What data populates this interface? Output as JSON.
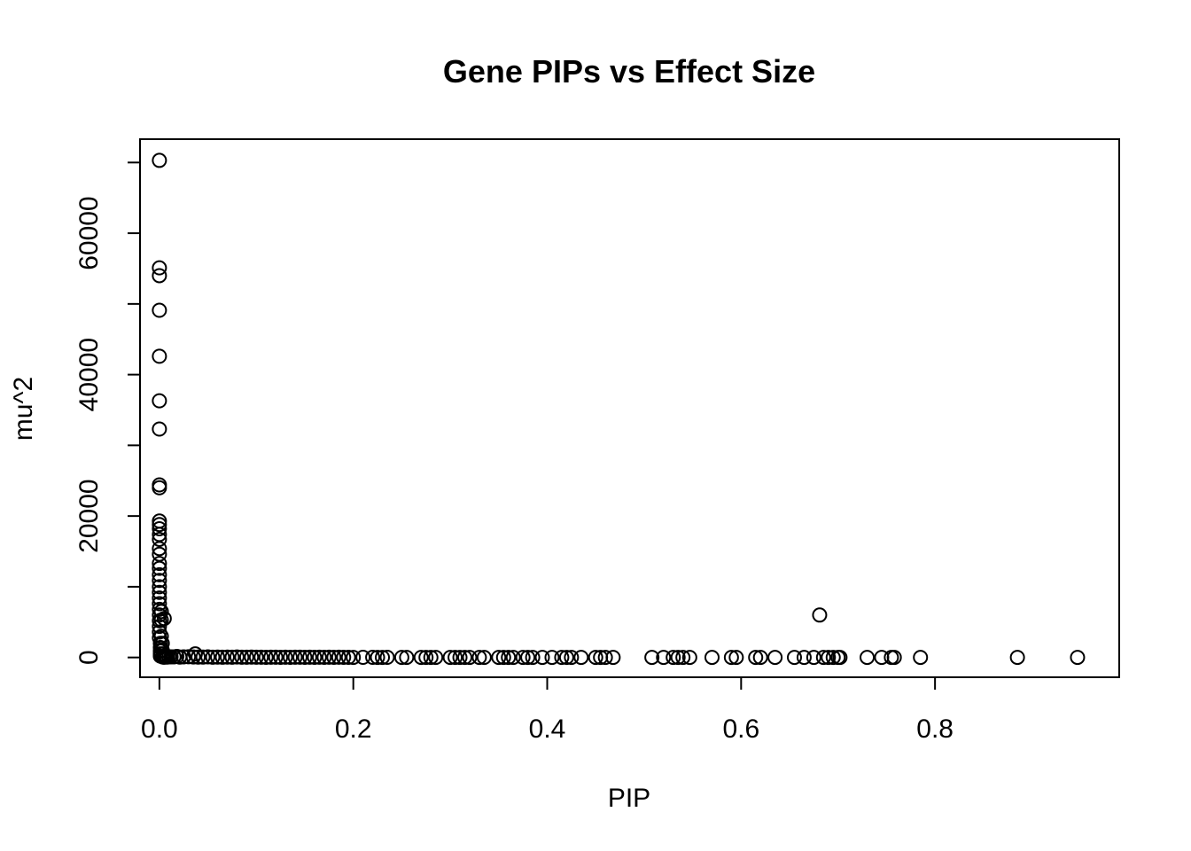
{
  "chart_data": {
    "type": "scatter",
    "title": "Gene PIPs vs Effect Size",
    "xlabel": "PIP",
    "ylabel": "mu^2",
    "xlim": [
      -0.02,
      0.99
    ],
    "ylim": [
      -2800,
      73300
    ],
    "x_ticks": [
      0.0,
      0.2,
      0.4,
      0.6,
      0.8
    ],
    "x_tick_labels": [
      "0.0",
      "0.2",
      "0.4",
      "0.6",
      "0.8"
    ],
    "y_ticks": [
      0,
      10000,
      20000,
      30000,
      40000,
      50000,
      60000,
      70000
    ],
    "y_tick_labels": [
      "0",
      "",
      "20000",
      "",
      "40000",
      "",
      "60000",
      ""
    ],
    "grid": false,
    "legend": "none",
    "marker": "open-circle",
    "color": "#000000",
    "x": [
      0.0,
      0.0,
      0.0,
      0.0,
      0.0,
      0.0,
      0.0,
      0.0,
      0.0,
      0.0,
      0.0,
      0.0,
      0.0,
      0.0,
      0.0,
      0.0,
      0.0,
      0.0,
      0.0,
      0.0,
      0.0,
      0.0,
      0.0,
      0.0,
      0.0,
      0.0,
      0.0,
      0.0,
      0.0,
      0.0,
      0.001,
      0.001,
      0.001,
      0.001,
      0.001,
      0.002,
      0.002,
      0.002,
      0.003,
      0.003,
      0.004,
      0.005,
      0.003,
      0.004,
      0.005,
      0.006,
      0.007,
      0.008,
      0.01,
      0.012,
      0.015,
      0.018,
      0.021,
      0.025,
      0.03,
      0.035,
      0.037,
      0.04,
      0.045,
      0.05,
      0.055,
      0.06,
      0.065,
      0.07,
      0.075,
      0.08,
      0.085,
      0.09,
      0.095,
      0.1,
      0.105,
      0.11,
      0.115,
      0.12,
      0.125,
      0.13,
      0.135,
      0.14,
      0.145,
      0.15,
      0.155,
      0.16,
      0.165,
      0.17,
      0.175,
      0.18,
      0.185,
      0.19,
      0.195,
      0.2,
      0.21,
      0.22,
      0.225,
      0.23,
      0.235,
      0.25,
      0.255,
      0.27,
      0.275,
      0.28,
      0.285,
      0.3,
      0.305,
      0.31,
      0.315,
      0.32,
      0.33,
      0.335,
      0.35,
      0.355,
      0.36,
      0.365,
      0.375,
      0.38,
      0.385,
      0.395,
      0.405,
      0.415,
      0.42,
      0.425,
      0.435,
      0.45,
      0.455,
      0.46,
      0.468,
      0.508,
      0.52,
      0.53,
      0.535,
      0.54,
      0.547,
      0.57,
      0.59,
      0.595,
      0.615,
      0.62,
      0.635,
      0.655,
      0.665,
      0.675,
      0.681,
      0.685,
      0.69,
      0.695,
      0.7,
      0.702,
      0.73,
      0.745,
      0.755,
      0.758,
      0.785,
      0.885,
      0.947
    ],
    "y": [
      70300,
      55100,
      54000,
      49100,
      42600,
      36300,
      32300,
      24400,
      24000,
      19300,
      18800,
      18200,
      17400,
      16700,
      15400,
      14600,
      13300,
      12600,
      11700,
      10900,
      10000,
      9200,
      8400,
      7600,
      6800,
      6000,
      5200,
      4400,
      3600,
      2800,
      2000,
      1400,
      900,
      500,
      200,
      6500,
      5300,
      3000,
      2000,
      1000,
      500,
      5500,
      100,
      50,
      30,
      100,
      80,
      60,
      100,
      90,
      80,
      150,
      60,
      80,
      100,
      70,
      500,
      60,
      50,
      80,
      40,
      60,
      30,
      50,
      40,
      70,
      30,
      40,
      60,
      30,
      40,
      20,
      30,
      40,
      20,
      30,
      20,
      40,
      30,
      20,
      30,
      20,
      30,
      20,
      30,
      20,
      30,
      20,
      20,
      10,
      20,
      20,
      10,
      10,
      20,
      10,
      10,
      10,
      10,
      10,
      10,
      10,
      10,
      10,
      10,
      10,
      10,
      10,
      10,
      10,
      10,
      10,
      10,
      10,
      10,
      10,
      10,
      10,
      10,
      10,
      10,
      10,
      10,
      10,
      10,
      10,
      10,
      10,
      10,
      10,
      10,
      10,
      10,
      10,
      10,
      10,
      10,
      10,
      10,
      10,
      6000,
      10,
      10,
      10,
      10,
      10,
      10,
      10,
      10,
      10,
      10,
      10,
      10
    ]
  }
}
